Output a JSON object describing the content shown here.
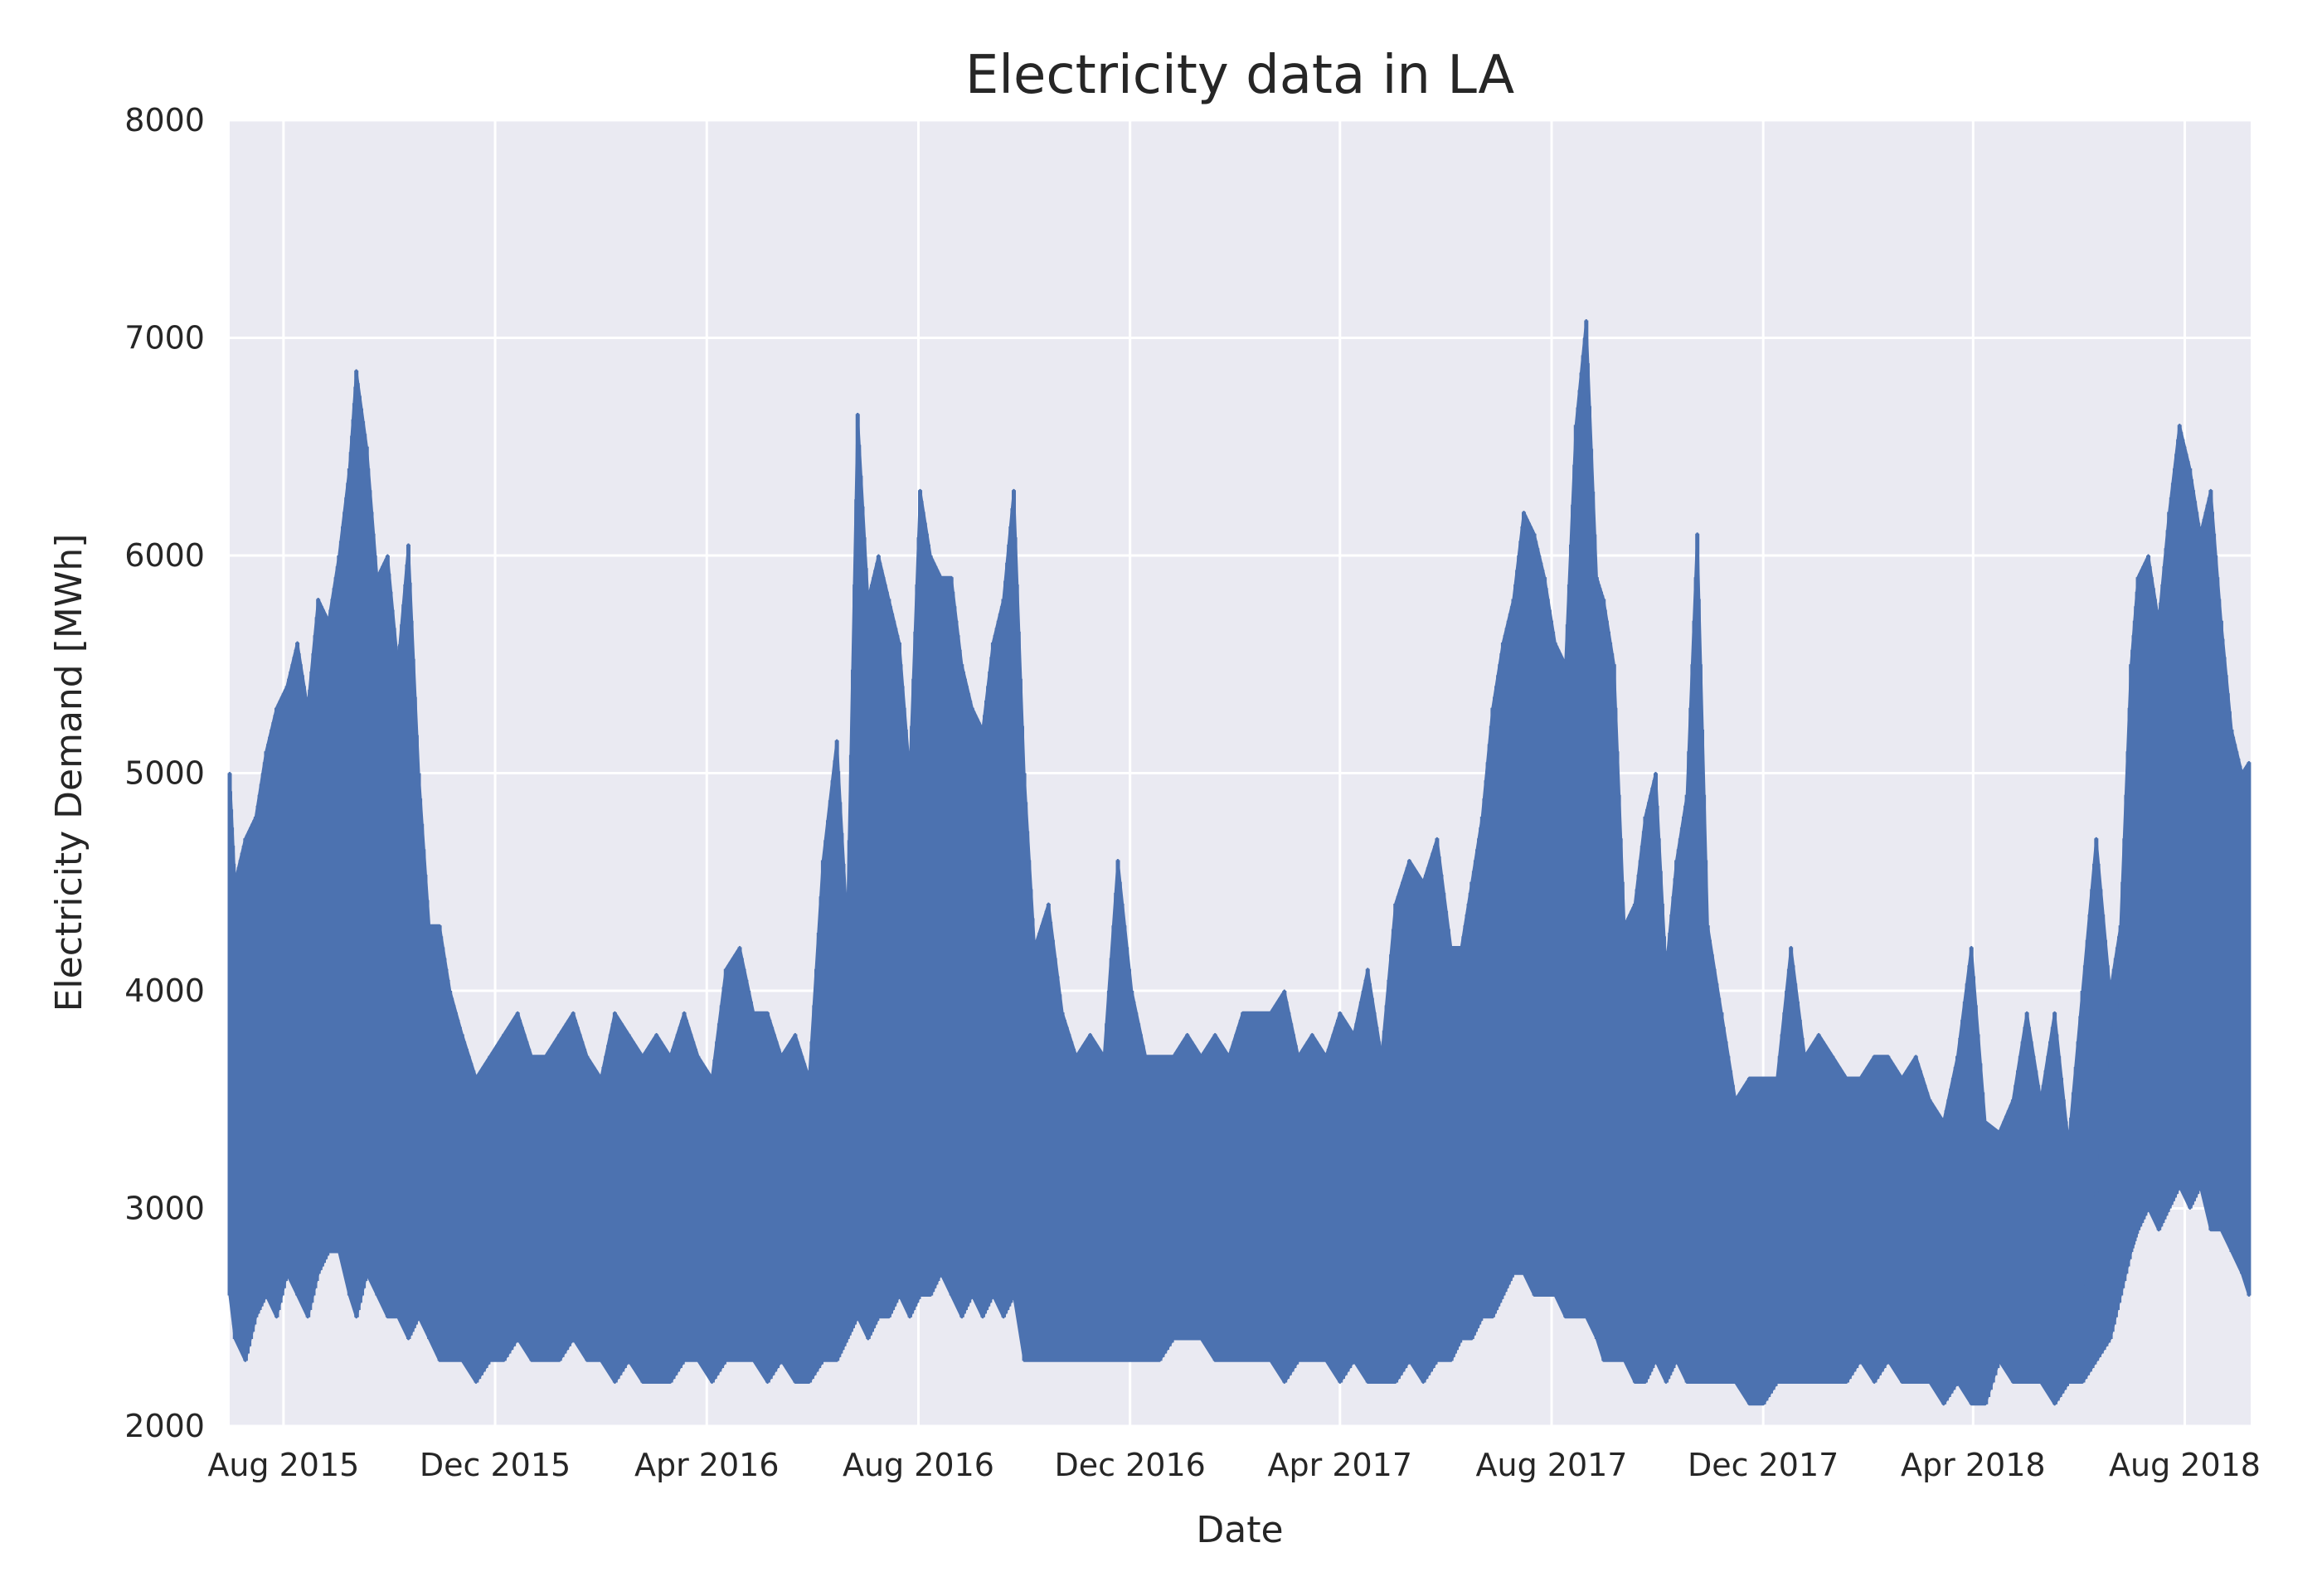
{
  "chart_data": {
    "type": "line",
    "title": "Electricity data in LA",
    "xlabel": "Date",
    "ylabel": "Electricity Demand [MWh]",
    "xlim": [
      "2015-07-01",
      "2018-09-08"
    ],
    "ylim": [
      2000,
      8000
    ],
    "yticks": [
      2000,
      3000,
      4000,
      5000,
      6000,
      7000,
      8000
    ],
    "xticks": [
      {
        "date": "2015-08-01",
        "label": "Aug 2015"
      },
      {
        "date": "2015-12-01",
        "label": "Dec 2015"
      },
      {
        "date": "2016-04-01",
        "label": "Apr 2016"
      },
      {
        "date": "2016-08-01",
        "label": "Aug 2016"
      },
      {
        "date": "2016-12-01",
        "label": "Dec 2016"
      },
      {
        "date": "2017-04-01",
        "label": "Apr 2017"
      },
      {
        "date": "2017-08-01",
        "label": "Aug 2017"
      },
      {
        "date": "2017-12-01",
        "label": "Dec 2017"
      },
      {
        "date": "2018-04-01",
        "label": "Apr 2018"
      },
      {
        "date": "2018-08-01",
        "label": "Aug 2018"
      }
    ],
    "grid": true,
    "style": {
      "line_color": "#4c72b0",
      "plot_background": "#eaeaf2",
      "grid_color": "#ffffff"
    },
    "series": [
      {
        "x": [
          "2015-07-01",
          "2015-07-04",
          "2015-07-10",
          "2015-07-16",
          "2015-07-22",
          "2015-07-28",
          "2015-08-03",
          "2015-08-09",
          "2015-08-15",
          "2015-08-21",
          "2015-08-27",
          "2015-09-02",
          "2015-09-08",
          "2015-09-12",
          "2015-09-18",
          "2015-09-24",
          "2015-09-30",
          "2015-10-06",
          "2015-10-12",
          "2015-10-18",
          "2015-10-24",
          "2015-10-30",
          "2015-11-05",
          "2015-11-12",
          "2015-11-20",
          "2015-11-28",
          "2015-12-06",
          "2015-12-14",
          "2015-12-22",
          "2015-12-30",
          "2016-01-07",
          "2016-01-15",
          "2016-01-23",
          "2016-01-31",
          "2016-02-08",
          "2016-02-16",
          "2016-02-24",
          "2016-03-03",
          "2016-03-11",
          "2016-03-19",
          "2016-03-27",
          "2016-04-04",
          "2016-04-12",
          "2016-04-20",
          "2016-04-28",
          "2016-05-06",
          "2016-05-14",
          "2016-05-22",
          "2016-05-30",
          "2016-06-07",
          "2016-06-15",
          "2016-06-21",
          "2016-06-27",
          "2016-07-03",
          "2016-07-09",
          "2016-07-15",
          "2016-07-21",
          "2016-07-27",
          "2016-08-02",
          "2016-08-08",
          "2016-08-14",
          "2016-08-20",
          "2016-08-26",
          "2016-09-01",
          "2016-09-07",
          "2016-09-13",
          "2016-09-19",
          "2016-09-25",
          "2016-10-01",
          "2016-10-07",
          "2016-10-15",
          "2016-10-23",
          "2016-10-31",
          "2016-11-08",
          "2016-11-16",
          "2016-11-24",
          "2016-12-02",
          "2016-12-10",
          "2016-12-18",
          "2016-12-26",
          "2017-01-03",
          "2017-01-11",
          "2017-01-19",
          "2017-01-27",
          "2017-02-04",
          "2017-02-12",
          "2017-02-20",
          "2017-02-28",
          "2017-03-08",
          "2017-03-16",
          "2017-03-24",
          "2017-04-01",
          "2017-04-09",
          "2017-04-17",
          "2017-04-25",
          "2017-05-03",
          "2017-05-11",
          "2017-05-19",
          "2017-05-27",
          "2017-06-04",
          "2017-06-10",
          "2017-06-16",
          "2017-06-22",
          "2017-06-28",
          "2017-07-04",
          "2017-07-10",
          "2017-07-16",
          "2017-07-22",
          "2017-07-28",
          "2017-08-03",
          "2017-08-09",
          "2017-08-15",
          "2017-08-21",
          "2017-08-27",
          "2017-08-31",
          "2017-09-06",
          "2017-09-12",
          "2017-09-18",
          "2017-09-24",
          "2017-09-30",
          "2017-10-06",
          "2017-10-12",
          "2017-10-18",
          "2017-10-24",
          "2017-10-30",
          "2017-11-07",
          "2017-11-15",
          "2017-11-23",
          "2017-12-01",
          "2017-12-09",
          "2017-12-17",
          "2017-12-25",
          "2018-01-02",
          "2018-01-10",
          "2018-01-18",
          "2018-01-26",
          "2018-02-03",
          "2018-02-11",
          "2018-02-19",
          "2018-02-27",
          "2018-03-07",
          "2018-03-15",
          "2018-03-23",
          "2018-03-31",
          "2018-04-08",
          "2018-04-16",
          "2018-04-24",
          "2018-05-02",
          "2018-05-10",
          "2018-05-18",
          "2018-05-26",
          "2018-06-03",
          "2018-06-11",
          "2018-06-19",
          "2018-06-25",
          "2018-07-01",
          "2018-07-05",
          "2018-07-11",
          "2018-07-17",
          "2018-07-23",
          "2018-07-29",
          "2018-08-04",
          "2018-08-10",
          "2018-08-16",
          "2018-08-22",
          "2018-08-28",
          "2018-09-03",
          "2018-09-07"
        ],
        "high": [
          5000,
          4500,
          4700,
          4800,
          5100,
          5300,
          5400,
          5600,
          5300,
          5800,
          5700,
          6000,
          6400,
          6850,
          6500,
          5900,
          6000,
          5500,
          6050,
          5000,
          4300,
          4300,
          4000,
          3800,
          3600,
          3700,
          3800,
          3900,
          3700,
          3700,
          3800,
          3900,
          3700,
          3600,
          3900,
          3800,
          3700,
          3800,
          3700,
          3900,
          3700,
          3600,
          4100,
          4200,
          3900,
          3900,
          3700,
          3800,
          3600,
          4600,
          5150,
          4300,
          6650,
          5800,
          6000,
          5800,
          5600,
          5000,
          6300,
          6000,
          5900,
          5900,
          5500,
          5300,
          5200,
          5600,
          5800,
          6300,
          5000,
          4200,
          4400,
          3900,
          3700,
          3800,
          3700,
          4600,
          4000,
          3700,
          3700,
          3700,
          3800,
          3700,
          3800,
          3700,
          3900,
          3900,
          3900,
          4000,
          3700,
          3800,
          3700,
          3900,
          3800,
          4100,
          3700,
          4400,
          4600,
          4500,
          4700,
          4200,
          4200,
          4500,
          4800,
          5300,
          5600,
          5800,
          6200,
          6100,
          5900,
          5600,
          5500,
          6600,
          7080,
          5900,
          5800,
          5500,
          4300,
          4400,
          4800,
          5000,
          4100,
          4600,
          4900,
          6100,
          4300,
          3900,
          3500,
          3600,
          3600,
          3600,
          4200,
          3700,
          3800,
          3700,
          3600,
          3600,
          3700,
          3700,
          3600,
          3700,
          3500,
          3400,
          3700,
          4200,
          3400,
          3350,
          3500,
          3900,
          3500,
          3900,
          3300,
          4000,
          4700,
          4000,
          4300,
          5500,
          5900,
          6000,
          5700,
          6200,
          6600,
          6400,
          6100,
          6300,
          5700,
          5200,
          5000,
          5050
        ],
        "low": [
          2600,
          2400,
          2300,
          2500,
          2600,
          2500,
          2700,
          2600,
          2500,
          2700,
          2800,
          2800,
          2600,
          2500,
          2700,
          2600,
          2500,
          2500,
          2400,
          2500,
          2400,
          2300,
          2300,
          2300,
          2200,
          2300,
          2300,
          2400,
          2300,
          2300,
          2300,
          2400,
          2300,
          2300,
          2200,
          2300,
          2200,
          2200,
          2200,
          2300,
          2300,
          2200,
          2300,
          2300,
          2300,
          2200,
          2300,
          2200,
          2200,
          2300,
          2300,
          2400,
          2500,
          2400,
          2500,
          2500,
          2600,
          2500,
          2600,
          2600,
          2700,
          2600,
          2500,
          2600,
          2500,
          2600,
          2500,
          2600,
          2300,
          2300,
          2300,
          2300,
          2300,
          2300,
          2300,
          2300,
          2300,
          2300,
          2300,
          2400,
          2400,
          2400,
          2300,
          2300,
          2300,
          2300,
          2300,
          2200,
          2300,
          2300,
          2300,
          2200,
          2300,
          2200,
          2200,
          2200,
          2300,
          2200,
          2300,
          2300,
          2400,
          2400,
          2500,
          2500,
          2600,
          2700,
          2700,
          2600,
          2600,
          2600,
          2500,
          2500,
          2500,
          2400,
          2300,
          2300,
          2300,
          2200,
          2200,
          2300,
          2200,
          2300,
          2200,
          2200,
          2200,
          2200,
          2200,
          2100,
          2100,
          2200,
          2200,
          2200,
          2200,
          2200,
          2200,
          2300,
          2200,
          2300,
          2200,
          2200,
          2200,
          2100,
          2200,
          2100,
          2100,
          2300,
          2200,
          2200,
          2200,
          2100,
          2200,
          2200,
          2300,
          2400,
          2600,
          2800,
          2900,
          3000,
          2900,
          3000,
          3100,
          3000,
          3100,
          2900,
          2900,
          2800,
          2700,
          2600
        ],
        "gap": {
          "from": {
            "x": "2018-06-04",
            "y": 2550
          },
          "to": {
            "x": "2018-06-25",
            "y": 4100
          }
        }
      }
    ]
  }
}
